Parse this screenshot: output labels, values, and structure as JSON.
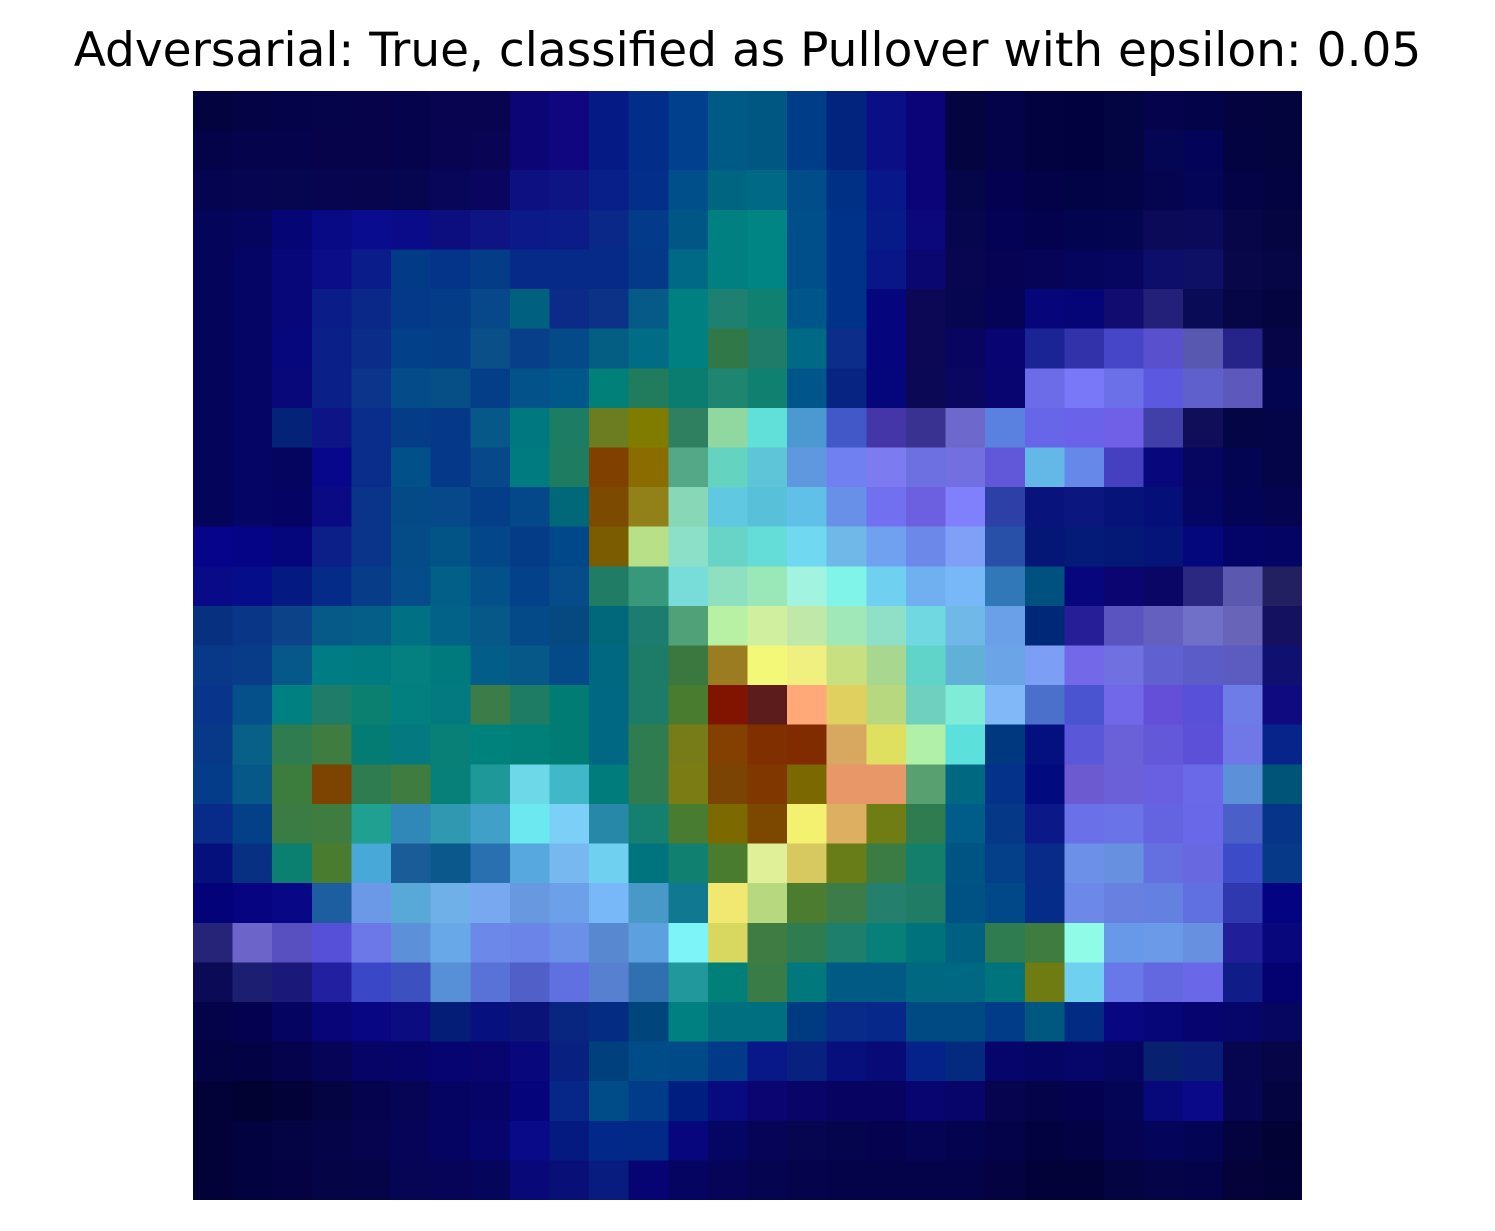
{
  "chart_data": {
    "type": "heatmap",
    "title": "Adversarial: True, classified as Pullover with epsilon: 0.05",
    "xlabel": "",
    "ylabel": "",
    "axes_visible": false,
    "grid": false,
    "rows": 28,
    "cols": 28,
    "colors": [
      [
        "#030340",
        "#040346",
        "#04034a",
        "#05034a",
        "#06034a",
        "#05034c",
        "#08044f",
        "#090450",
        "#0c0575",
        "#0f0680",
        "#061a86",
        "#022d89",
        "#00408c",
        "#005a86",
        "#005882",
        "#003d88",
        "#02247e",
        "#0a0f86",
        "#0b0378",
        "#040441",
        "#040248",
        "#030240",
        "#020140",
        "#030442",
        "#04034c",
        "#03034a",
        "#040340",
        "#03033e"
      ],
      [
        "#04034a",
        "#05034c",
        "#05034c",
        "#06034a",
        "#06034a",
        "#05034c",
        "#080452",
        "#090454",
        "#0c0575",
        "#0f0680",
        "#061a86",
        "#022d89",
        "#00408c",
        "#005a86",
        "#005882",
        "#003d88",
        "#02247e",
        "#0a0f86",
        "#0b0378",
        "#040441",
        "#040248",
        "#030240",
        "#020140",
        "#030442",
        "#040553",
        "#03035a",
        "#040342",
        "#03033e"
      ],
      [
        "#040450",
        "#050552",
        "#06054f",
        "#070550",
        "#07054e",
        "#06054f",
        "#080658",
        "#0a0660",
        "#0d1080",
        "#0e1484",
        "#081e88",
        "#032e89",
        "#004e8a",
        "#006580",
        "#006a86",
        "#004d8a",
        "#002f86",
        "#08178a",
        "#0a0478",
        "#05054a",
        "#040250",
        "#030248",
        "#020246",
        "#030448",
        "#04054e",
        "#040557",
        "#040347",
        "#030342"
      ],
      [
        "#04045a",
        "#050560",
        "#060575",
        "#080985",
        "#0a0c90",
        "#0a0b88",
        "#0c0e80",
        "#0e1484",
        "#0b1a88",
        "#0b1c88",
        "#0a2888",
        "#033a89",
        "#005684",
        "#008080",
        "#008484",
        "#004e8a",
        "#00328a",
        "#061a88",
        "#0a087a",
        "#06064e",
        "#040254",
        "#03024e",
        "#030450",
        "#040550",
        "#0a0a58",
        "#0b0a5a",
        "#060648",
        "#050542"
      ],
      [
        "#04045a",
        "#050565",
        "#08077a",
        "#0a0c88",
        "#0a1c8a",
        "#033a88",
        "#04348a",
        "#053c88",
        "#062a88",
        "#062a88",
        "#062a88",
        "#043888",
        "#006a86",
        "#008080",
        "#008484",
        "#004e8a",
        "#00328a",
        "#081688",
        "#0a0770",
        "#080650",
        "#060355",
        "#050456",
        "#05055e",
        "#060661",
        "#0c0e6a",
        "#0e1066",
        "#08074a",
        "#060545"
      ],
      [
        "#04045a",
        "#050565",
        "#08077a",
        "#0a1c88",
        "#0a2888",
        "#043888",
        "#043c88",
        "#06488a",
        "#006080",
        "#0c2a88",
        "#0c3288",
        "#065a88",
        "#008080",
        "#1e8070",
        "#108070",
        "#00568a",
        "#00328a",
        "#05057e",
        "#0c0855",
        "#06054f",
        "#040358",
        "#06057a",
        "#050578",
        "#100c70",
        "#222078",
        "#0a0b56",
        "#060545",
        "#040540"
      ],
      [
        "#04045a",
        "#050565",
        "#06077c",
        "#0b1f89",
        "#0b2c88",
        "#03408a",
        "#043e88",
        "#0a4f88",
        "#073f89",
        "#044a89",
        "#045e84",
        "#006c86",
        "#008080",
        "#307848",
        "#1e7c68",
        "#006a86",
        "#0c2e8a",
        "#05057e",
        "#0c0855",
        "#070560",
        "#080572",
        "#1a2494",
        "#3232aa",
        "#4646c8",
        "#5850cc",
        "#5858b0",
        "#262488",
        "#060548"
      ],
      [
        "#04045a",
        "#050565",
        "#08087a",
        "#0b1f89",
        "#0b348a",
        "#034c89",
        "#054e86",
        "#043e88",
        "#04528a",
        "#00588a",
        "#008078",
        "#207c5c",
        "#0a7c70",
        "#1e8670",
        "#108070",
        "#00568a",
        "#082482",
        "#05057c",
        "#0b0855",
        "#0a0760",
        "#080570",
        "#6c6ce8",
        "#7878f8",
        "#6c70e8",
        "#5c58e0",
        "#6060cc",
        "#5c58bc",
        "#040550"
      ],
      [
        "#04045a",
        "#050565",
        "#042278",
        "#0c1486",
        "#0a2c8a",
        "#043c88",
        "#06388a",
        "#065888",
        "#007880",
        "#1c7c64",
        "#6c7c20",
        "#807c00",
        "#2e8060",
        "#90d8a0",
        "#60e0d8",
        "#4c98d0",
        "#4258c8",
        "#4436a8",
        "#3a3290",
        "#6c68cc",
        "#5a80e0",
        "#6866e8",
        "#6a62e8",
        "#7060e8",
        "#4040a8",
        "#100e58",
        "#040545",
        "#040448"
      ],
      [
        "#04045a",
        "#050565",
        "#05045f",
        "#07078c",
        "#0a2c8a",
        "#02508a",
        "#06388a",
        "#06488a",
        "#007c80",
        "#1e7c60",
        "#804000",
        "#8a6c00",
        "#54a888",
        "#64d4c0",
        "#5ec4d8",
        "#6098e0",
        "#7080f0",
        "#7c7cf0",
        "#6c70e0",
        "#7270e0",
        "#6058d8",
        "#64b8e8",
        "#6688e8",
        "#4440c0",
        "#08087c",
        "#060660",
        "#040552",
        "#040448"
      ],
      [
        "#04045a",
        "#050565",
        "#050465",
        "#090a84",
        "#0a348a",
        "#044a86",
        "#06488a",
        "#043e88",
        "#04488a",
        "#006878",
        "#7c4a00",
        "#928018",
        "#88d8b8",
        "#60c8e0",
        "#58c0d8",
        "#60c0e8",
        "#6890e8",
        "#7070f0",
        "#6c60e0",
        "#8080fc",
        "#2c40a8",
        "#08147c",
        "#0b167e",
        "#06147a",
        "#041078",
        "#050564",
        "#040456",
        "#040450"
      ],
      [
        "#06048a",
        "#060486",
        "#06067c",
        "#0c1e88",
        "#0a348a",
        "#044c88",
        "#025486",
        "#03468a",
        "#043c88",
        "#00488a",
        "#7c5c00",
        "#b8e088",
        "#8ce0c8",
        "#68d4c8",
        "#64dcd8",
        "#70d8f0",
        "#70b8e8",
        "#70a0f0",
        "#6c88e8",
        "#80a0f8",
        "#2850a8",
        "#041676",
        "#041c78",
        "#041875",
        "#041478",
        "#04067c",
        "#040468",
        "#040464"
      ],
      [
        "#080a88",
        "#060d8a",
        "#041a82",
        "#052b88",
        "#063c88",
        "#044c8a",
        "#026088",
        "#04508a",
        "#03428a",
        "#064c8a",
        "#207c64",
        "#38987c",
        "#78dcd8",
        "#8ee0c0",
        "#9ae8b8",
        "#a2f4e0",
        "#80f4e8",
        "#70d0f0",
        "#70b0f0",
        "#78b8f8",
        "#3078b8",
        "#005080",
        "#08067c",
        "#0a0570",
        "#0a0666",
        "#2a2880",
        "#5b58b0",
        "#222060"
      ],
      [
        "#083080",
        "#0a3688",
        "#0c4288",
        "#065a88",
        "#045e88",
        "#007084",
        "#026288",
        "#055888",
        "#044a88",
        "#064880",
        "#00687a",
        "#1c7c70",
        "#50a078",
        "#b8f0a4",
        "#d0f0a0",
        "#c0e8a8",
        "#a0e8b8",
        "#90e0c8",
        "#70d8e0",
        "#70b8e8",
        "#6aa0e8",
        "#002878",
        "#261e96",
        "#5a54c0",
        "#6460c0",
        "#7070c8",
        "#6864b8",
        "#141260"
      ],
      [
        "#083888",
        "#083c88",
        "#06588a",
        "#007c84",
        "#007c80",
        "#048080",
        "#007a7c",
        "#025e88",
        "#055888",
        "#044a88",
        "#006880",
        "#1c7c68",
        "#3a7840",
        "#9c7c20",
        "#f4f878",
        "#f0f080",
        "#c8e080",
        "#a8d890",
        "#60d4c8",
        "#60b0d8",
        "#6ca4e8",
        "#7c9ef4",
        "#7268e8",
        "#7070e0",
        "#6060d0",
        "#5c5cc8",
        "#5c5cc0",
        "#101070"
      ],
      [
        "#08348c",
        "#05508a",
        "#008080",
        "#1e7c68",
        "#0c8070",
        "#028080",
        "#027a80",
        "#3c7c48",
        "#1e7c64",
        "#007c74",
        "#006882",
        "#1c7c68",
        "#4a7c30",
        "#801400",
        "#5c1c1c",
        "#ffa878",
        "#e0d060",
        "#b8d880",
        "#70d0c0",
        "#80ecd8",
        "#80b8f8",
        "#4a70cc",
        "#4a54d0",
        "#7068e8",
        "#6450d8",
        "#5850d8",
        "#6e7ce8",
        "#100a80"
      ],
      [
        "#083888",
        "#086088",
        "#2e7c50",
        "#3e7c40",
        "#047c74",
        "#047a80",
        "#088078",
        "#00827c",
        "#008078",
        "#007c74",
        "#006882",
        "#2e7c50",
        "#787c18",
        "#844000",
        "#803000",
        "#802c00",
        "#d8a860",
        "#e0e060",
        "#b0f0a8",
        "#5ce0dc",
        "#003880",
        "#051080",
        "#5a58d8",
        "#6a60d8",
        "#6258d8",
        "#5c50d8",
        "#7078e8",
        "#06248a"
      ],
      [
        "#043c8a",
        "#065888",
        "#3c7c3c",
        "#7c4400",
        "#2e7c50",
        "#3e7c40",
        "#068078",
        "#1e9898",
        "#6cd8e8",
        "#40b8c8",
        "#007c7c",
        "#2e7c50",
        "#7c7c14",
        "#7c4404",
        "#803800",
        "#7c6800",
        "#e89868",
        "#e89868",
        "#58a070",
        "#006880",
        "#04328a",
        "#020a80",
        "#6c5ad0",
        "#6c60d8",
        "#6860e0",
        "#6a6ae8",
        "#5c90d8",
        "#005478"
      ],
      [
        "#082a88",
        "#044088",
        "#3a7c44",
        "#3e7c40",
        "#20a090",
        "#3088b8",
        "#3098b0",
        "#40a0c8",
        "#6ce8f0",
        "#7cd0f8",
        "#2888a8",
        "#168070",
        "#487c30",
        "#7c6a00",
        "#7c4800",
        "#f4f070",
        "#dcb060",
        "#707c14",
        "#2e7c50",
        "#005c88",
        "#063888",
        "#0a1888",
        "#6a70e8",
        "#6a74e8",
        "#6464e0",
        "#6868e8",
        "#4a60c8",
        "#063488"
      ],
      [
        "#06107c",
        "#083082",
        "#0c8070",
        "#4a7c30",
        "#48a8d8",
        "#1a5c98",
        "#0a588c",
        "#2870b0",
        "#58a8e0",
        "#78b8f0",
        "#70d0f0",
        "#00747e",
        "#108070",
        "#4a7c30",
        "#e0f098",
        "#d8c860",
        "#687c18",
        "#3a7c44",
        "#14806c",
        "#005484",
        "#04408a",
        "#082a88",
        "#6c90e8",
        "#6890e0",
        "#6470e0",
        "#6868e0",
        "#3c4cc8",
        "#063a88"
      ],
      [
        "#040278",
        "#060480",
        "#080886",
        "#1c5ea0",
        "#6c98e8",
        "#58a8d8",
        "#70b0e8",
        "#78a8f0",
        "#6898e0",
        "#6ca0e8",
        "#78b8f8",
        "#4898c8",
        "#107890",
        "#f0e870",
        "#b8d880",
        "#4c7c30",
        "#3c7c48",
        "#24806c",
        "#207c64",
        "#005284",
        "#004888",
        "#062c8a",
        "#6c88e8",
        "#6880e0",
        "#6480e0",
        "#6070e0",
        "#3038b0",
        "#040482"
      ],
      [
        "#262478",
        "#6c64c8",
        "#5850c0",
        "#5650d8",
        "#6c78e8",
        "#5c90d8",
        "#68a8e8",
        "#6c88e8",
        "#6a84e8",
        "#6a90e8",
        "#5888d0",
        "#5ca0e0",
        "#7cf4f8",
        "#d8d860",
        "#3e7c44",
        "#2e7c50",
        "#1e806c",
        "#068078",
        "#00727c",
        "#006082",
        "#2e7c50",
        "#3e7c40",
        "#90fce8",
        "#6898e8",
        "#6a9ae8",
        "#6890e0",
        "#201e98",
        "#08087c"
      ],
      [
        "#0a0a56",
        "#1c1e72",
        "#1a1878",
        "#2220a0",
        "#3a48c8",
        "#3c50c0",
        "#5890d8",
        "#5872d8",
        "#5060c8",
        "#6070e0",
        "#5880d0",
        "#3070b0",
        "#20989c",
        "#008078",
        "#3a7c48",
        "#00787c",
        "#005a84",
        "#005a84",
        "#006880",
        "#006882",
        "#00747c",
        "#6e7c12",
        "#70d0f0",
        "#6878e8",
        "#6468e0",
        "#6a68e8",
        "#101c88",
        "#040270"
      ],
      [
        "#040248",
        "#040250",
        "#050460",
        "#080578",
        "#080682",
        "#0a0c80",
        "#041e78",
        "#06107e",
        "#0a1478",
        "#082680",
        "#042c82",
        "#00467c",
        "#008080",
        "#007080",
        "#007080",
        "#003a80",
        "#082a88",
        "#06288a",
        "#004a84",
        "#004a84",
        "#003c88",
        "#005880",
        "#022c84",
        "#080680",
        "#060678",
        "#060570",
        "#06066a",
        "#060560"
      ],
      [
        "#030242",
        "#030244",
        "#05034c",
        "#060456",
        "#060466",
        "#060468",
        "#060470",
        "#080570",
        "#08087c",
        "#082080",
        "#00407c",
        "#004c88",
        "#004a88",
        "#003a88",
        "#081888",
        "#082080",
        "#060f7c",
        "#080a78",
        "#04228a",
        "#042a80",
        "#06056c",
        "#050566",
        "#06056a",
        "#050562",
        "#082070",
        "#081c78",
        "#060550",
        "#060548"
      ],
      [
        "#030238",
        "#020232",
        "#030238",
        "#040442",
        "#05034e",
        "#060454",
        "#060462",
        "#060466",
        "#06047a",
        "#062688",
        "#004c88",
        "#003c8a",
        "#001e80",
        "#080a80",
        "#0a0570",
        "#080468",
        "#060460",
        "#060460",
        "#080470",
        "#08056a",
        "#06044f",
        "#040248",
        "#040250",
        "#050556",
        "#07087a",
        "#0a0a88",
        "#060552",
        "#040440"
      ],
      [
        "#030238",
        "#030240",
        "#040444",
        "#050448",
        "#06044e",
        "#060458",
        "#060462",
        "#06056e",
        "#080a88",
        "#041a80",
        "#02288a",
        "#022888",
        "#08067c",
        "#050564",
        "#060456",
        "#050550",
        "#05054e",
        "#050350",
        "#050454",
        "#040350",
        "#040248",
        "#030240",
        "#030244",
        "#050452",
        "#04045a",
        "#040454",
        "#040340",
        "#030234"
      ],
      [
        "#030238",
        "#030240",
        "#040242",
        "#050446",
        "#050448",
        "#060454",
        "#060458",
        "#06055c",
        "#080878",
        "#081078",
        "#081c80",
        "#060472",
        "#050460",
        "#060458",
        "#040450",
        "#04034c",
        "#040248",
        "#040248",
        "#04034a",
        "#040248",
        "#040240",
        "#030238",
        "#030238",
        "#040442",
        "#050448",
        "#04034a",
        "#040238",
        "#030236"
      ]
    ]
  }
}
